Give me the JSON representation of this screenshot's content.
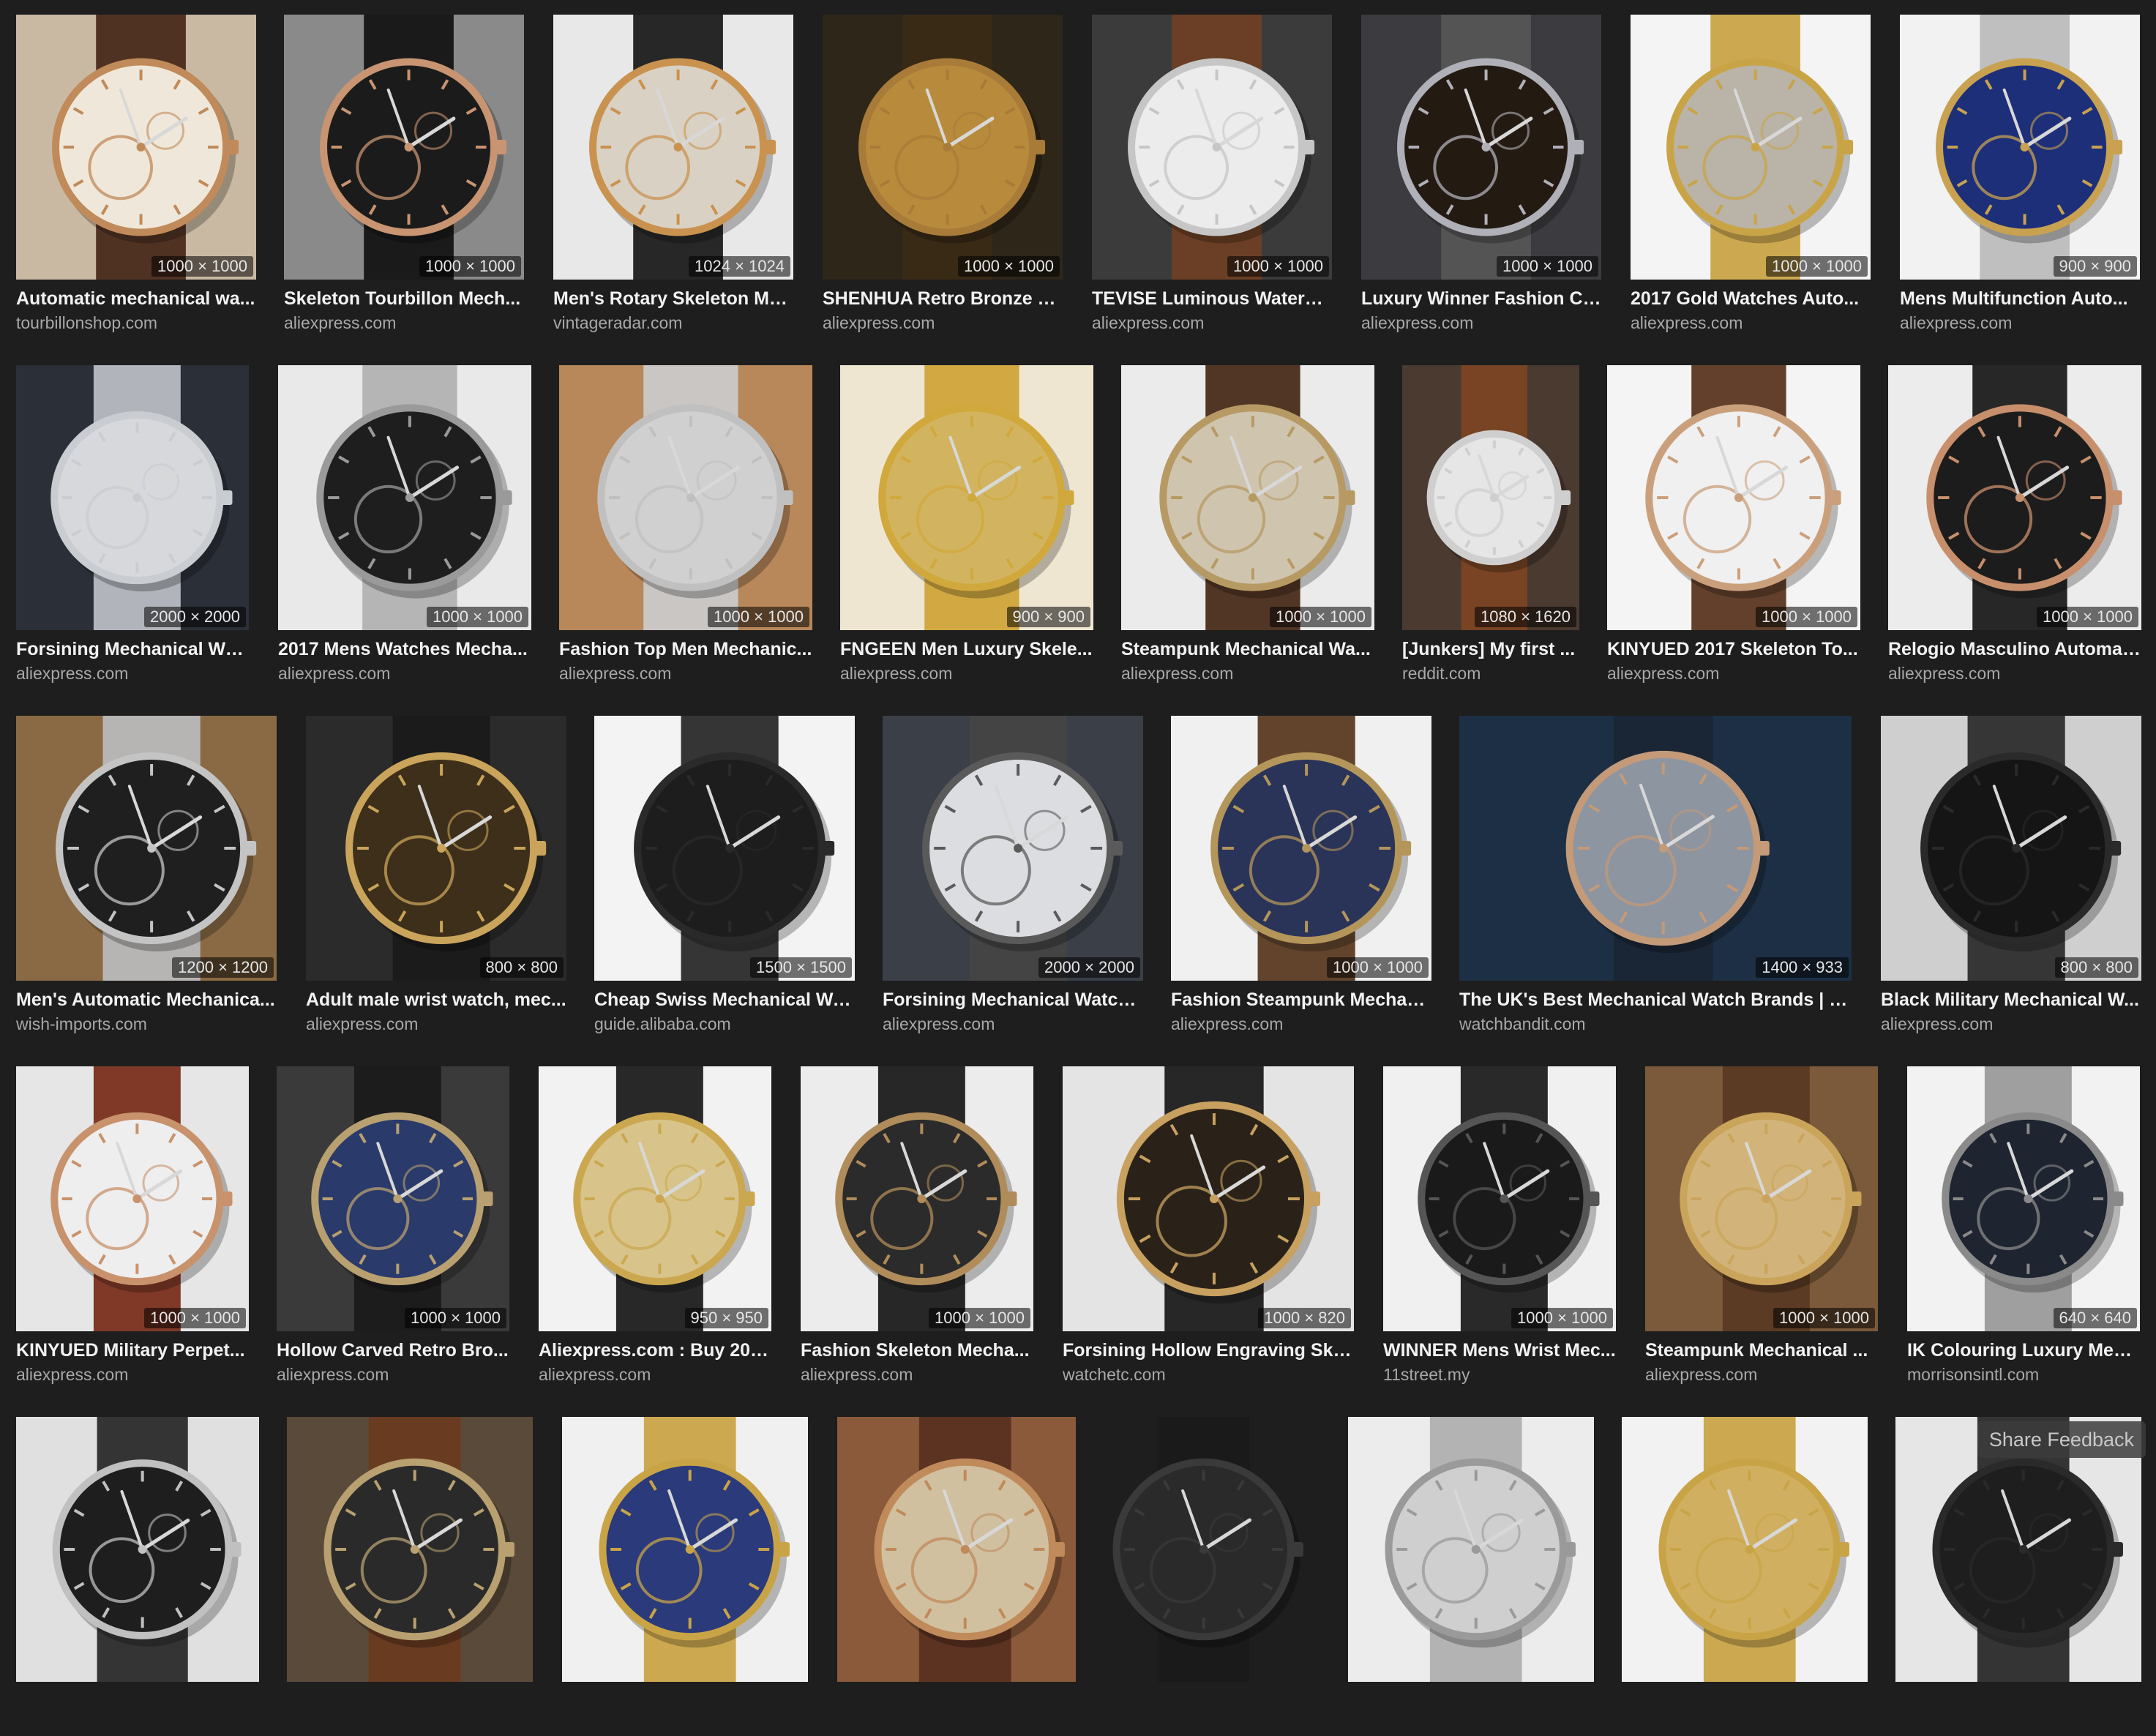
{
  "rows": [
    {
      "tiles": [
        {
          "dims": "1000 × 1000",
          "title": "Automatic mechanical wa...",
          "source": "tourbillonshop.com",
          "bg": "#c9b9a2",
          "dial": "#efe8da",
          "case": "#c08a5a",
          "strap": "#4a2a1c"
        },
        {
          "dims": "1000 × 1000",
          "title": "Skeleton Tourbillon Mech...",
          "source": "aliexpress.com",
          "bg": "#8a8a8a",
          "dial": "#1b1b1b",
          "case": "#c89472",
          "strap": "#141414"
        },
        {
          "dims": "1024 × 1024",
          "title": "Men's Rotary Skeleton Me...",
          "source": "vintageradar.com",
          "bg": "#e8e8e8",
          "dial": "#d9d1c4",
          "case": "#c9924f",
          "strap": "#1c1c1c"
        },
        {
          "dims": "1000 × 1000",
          "title": "SHENHUA Retro Bronze S...",
          "source": "aliexpress.com",
          "bg": "#2e2618",
          "dial": "#b88b3c",
          "case": "#a87b38",
          "strap": "#3a2a16"
        },
        {
          "dims": "1000 × 1000",
          "title": "TEVISE Luminous Waterpr...",
          "source": "aliexpress.com",
          "bg": "#3b3b3b",
          "dial": "#ececec",
          "case": "#c6c6c6",
          "strap": "#6e3f24"
        },
        {
          "dims": "1000 × 1000",
          "title": "Luxury Winner Fashion Ca...",
          "source": "aliexpress.com",
          "bg": "#3c3c40",
          "dial": "#231a12",
          "case": "#b0b0b8",
          "strap": "#555555"
        },
        {
          "dims": "1000 × 1000",
          "title": "2017 Gold Watches Auto...",
          "source": "aliexpress.com",
          "bg": "#f4f4f4",
          "dial": "#b9b3a8",
          "case": "#c9a447",
          "strap": "#c9a447"
        },
        {
          "dims": "900 × 900",
          "title": "Mens Multifunction Auto...",
          "source": "aliexpress.com",
          "bg": "#f2f2f2",
          "dial": "#1d2f78",
          "case": "#c8a250",
          "strap": "#bcbcbc"
        }
      ]
    },
    {
      "tiles": [
        {
          "dims": "2000 × 2000",
          "title": "Forsining Mechanical Wri...",
          "source": "aliexpress.com",
          "bg": "#2b3038",
          "dial": "#d6d8dc",
          "case": "#c9ccd1",
          "strap": "#b8bcc2"
        },
        {
          "dims": "1000 × 1000",
          "title": "2017 Mens Watches Mecha...",
          "source": "aliexpress.com",
          "bg": "#e9e9e9",
          "dial": "#1e1e1e",
          "case": "#9a9a9a",
          "strap": "#b2b2b2"
        },
        {
          "dims": "1000 × 1000",
          "title": "Fashion Top Men Mechanic...",
          "source": "aliexpress.com",
          "bg": "#b8875a",
          "dial": "#d0d0d0",
          "case": "#c0c0c0",
          "strap": "#c9c9c9"
        },
        {
          "dims": "900 × 900",
          "title": "FNGEEN Men Luxury Skele...",
          "source": "aliexpress.com",
          "bg": "#efe6d2",
          "dial": "#d2b460",
          "case": "#d1a83c",
          "strap": "#cfa43a"
        },
        {
          "dims": "1000 × 1000",
          "title": "Steampunk Mechanical Wa...",
          "source": "aliexpress.com",
          "bg": "#ebebeb",
          "dial": "#cfc4ae",
          "case": "#b79a63",
          "strap": "#4a2c1a"
        },
        {
          "dims": "1080 × 1620",
          "title": "[Junkers] My first ...",
          "source": "reddit.com",
          "bg": "#4a3a30",
          "dial": "#e6e6e6",
          "case": "#cfcfcf",
          "strap": "#7a4424"
        },
        {
          "dims": "1000 × 1000",
          "title": "KINYUED 2017 Skeleton To...",
          "source": "aliexpress.com",
          "bg": "#f4f4f4",
          "dial": "#f0f0f0",
          "case": "#caa07c",
          "strap": "#5b3620"
        },
        {
          "dims": "1000 × 1000",
          "title": "Relogio Masculino Automat...",
          "source": "aliexpress.com",
          "bg": "#ececec",
          "dial": "#1c1c1c",
          "case": "#c88f6c",
          "strap": "#1c1c1c"
        }
      ]
    },
    {
      "tiles": [
        {
          "dims": "1200 × 1200",
          "title": "Men's Automatic Mechanica...",
          "source": "wish-imports.com",
          "bg": "#8a6a44",
          "dial": "#1f1f1f",
          "case": "#c4c4c4",
          "strap": "#b9b9b9"
        },
        {
          "dims": "800 × 800",
          "title": "Adult male wrist watch, mec...",
          "source": "aliexpress.com",
          "bg": "#2b2b2b",
          "dial": "#3d2f1a",
          "case": "#c9a45a",
          "strap": "#1a1a1a"
        },
        {
          "dims": "1500 × 1500",
          "title": "Cheap Swiss Mechanical Wa...",
          "source": "guide.alibaba.com",
          "bg": "#f3f3f3",
          "dial": "#1d1d1d",
          "case": "#2a2a2a",
          "strap": "#2a2a2a"
        },
        {
          "dims": "2000 × 2000",
          "title": "Forsining Mechanical Watch...",
          "source": "aliexpress.com",
          "bg": "#3a3f48",
          "dial": "#dcdde0",
          "case": "#5a5a5a",
          "strap": "#444444"
        },
        {
          "dims": "1000 × 1000",
          "title": "Fashion Steampunk Mechan...",
          "source": "aliexpress.com",
          "bg": "#f0f0f0",
          "dial": "#2a3458",
          "case": "#b4965a",
          "strap": "#5a3a22"
        },
        {
          "dims": "1400 × 933",
          "title": "The UK's Best Mechanical Watch Brands | W...",
          "source": "watchbandit.com",
          "bg": "#1d2f44",
          "dial": "#8d95a0",
          "case": "#c49a78",
          "strap": "#1a2636"
        },
        {
          "dims": "800 × 800",
          "title": "Black Military Mechanical W...",
          "source": "aliexpress.com",
          "bg": "#cfcfcf",
          "dial": "#151515",
          "case": "#2a2a2a",
          "strap": "#2d2d2d"
        }
      ]
    },
    {
      "tiles": [
        {
          "dims": "1000 × 1000",
          "title": "KINYUED Military Perpet...",
          "source": "aliexpress.com",
          "bg": "#e6e6e6",
          "dial": "#eeeeee",
          "case": "#c8926c",
          "strap": "#7a2f1c"
        },
        {
          "dims": "1000 × 1000",
          "title": "Hollow Carved Retro Bro...",
          "source": "aliexpress.com",
          "bg": "#3a3a3a",
          "dial": "#2a3a6a",
          "case": "#b8a070",
          "strap": "#1a1a1a"
        },
        {
          "dims": "950 × 950",
          "title": "Aliexpress.com : Buy 201...",
          "source": "aliexpress.com",
          "bg": "#f2f2f2",
          "dial": "#d8c48a",
          "case": "#cba850",
          "strap": "#1c1c1c"
        },
        {
          "dims": "1000 × 1000",
          "title": "Fashion Skeleton Mecha...",
          "source": "aliexpress.com",
          "bg": "#ececec",
          "dial": "#2b2b2b",
          "case": "#b08c5a",
          "strap": "#1c1c1c"
        },
        {
          "dims": "1000 × 820",
          "title": "Forsining Hollow Engraving Ske...",
          "source": "watchetc.com",
          "bg": "#e4e4e4",
          "dial": "#2a2218",
          "case": "#c8a060",
          "strap": "#1c1c1c"
        },
        {
          "dims": "1000 × 1000",
          "title": "WINNER Mens Wrist Mec...",
          "source": "11street.my",
          "bg": "#f0f0f0",
          "dial": "#1a1a1a",
          "case": "#555555",
          "strap": "#1e1e1e"
        },
        {
          "dims": "1000 × 1000",
          "title": "Steampunk Mechanical ...",
          "source": "aliexpress.com",
          "bg": "#7a5a3a",
          "dial": "#d2b47a",
          "case": "#c9a45a",
          "strap": "#5a3a22"
        },
        {
          "dims": "640 × 640",
          "title": "IK Colouring Luxury Men'...",
          "source": "morrisonsintl.com",
          "bg": "#f2f2f2",
          "dial": "#1e2530",
          "case": "#8a8a8a",
          "strap": "#9a9a9a"
        }
      ]
    },
    {
      "tiles": [
        {
          "dims": "",
          "title": "",
          "source": "",
          "bg": "#e0e0e0",
          "dial": "#1e1e1e",
          "case": "#c0c0c0",
          "strap": "#2a2a2a"
        },
        {
          "dims": "",
          "title": "",
          "source": "",
          "bg": "#5a4a3a",
          "dial": "#2a2a2a",
          "case": "#b8a070",
          "strap": "#6a3a20"
        },
        {
          "dims": "",
          "title": "",
          "source": "",
          "bg": "#f0f0f0",
          "dial": "#2a3a7a",
          "case": "#c9a447",
          "strap": "#c9a447"
        },
        {
          "dims": "",
          "title": "",
          "source": "",
          "bg": "#8a5a3a",
          "dial": "#d0c0a0",
          "case": "#c08a5a",
          "strap": "#5a3020"
        },
        {
          "dims": "",
          "title": "",
          "source": "",
          "bg": "#1e1e1e",
          "dial": "#2a2a2a",
          "case": "#3a3a3a",
          "strap": "#1a1a1a"
        },
        {
          "dims": "",
          "title": "",
          "source": "",
          "bg": "#ececec",
          "dial": "#cfcfcf",
          "case": "#9a9a9a",
          "strap": "#b0b0b0"
        },
        {
          "dims": "",
          "title": "",
          "source": "",
          "bg": "#f2f2f2",
          "dial": "#d0b060",
          "case": "#c9a447",
          "strap": "#c9a447"
        },
        {
          "dims": "",
          "title": "",
          "source": "",
          "bg": "#e6e6e6",
          "dial": "#1e1e1e",
          "case": "#2a2a2a",
          "strap": "#2a2a2a"
        }
      ]
    }
  ],
  "feedback_label": "Share Feedback"
}
